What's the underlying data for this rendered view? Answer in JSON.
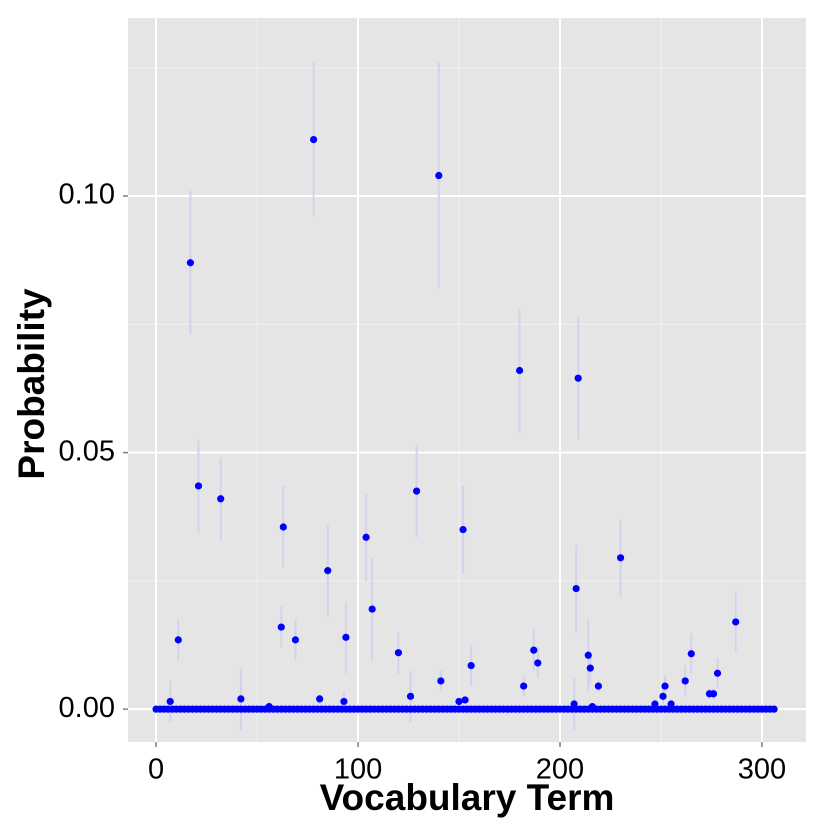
{
  "chart_data": {
    "type": "scatter",
    "x_label": "Vocabulary Term",
    "y_label": "Probability",
    "xlim": [
      -13.9,
      321.8
    ],
    "ylim": [
      -0.0064,
      0.1347
    ],
    "xticks": [
      0,
      100,
      200,
      300
    ],
    "yticks": [
      {
        "value": 0,
        "label": "0.00"
      },
      {
        "value": 0.05,
        "label": "0.05"
      },
      {
        "value": 0.1,
        "label": "0.10"
      }
    ],
    "xminor": [
      50,
      150,
      250
    ],
    "yminor": [
      0.025,
      0.075,
      0.125
    ],
    "grid": true,
    "background": "#e5e5e5",
    "error_color": "#d2d2ee",
    "series": [
      {
        "color": "#0000ff",
        "x": [
          0,
          2,
          4,
          6,
          8,
          10,
          12,
          14,
          16,
          18,
          20,
          22,
          24,
          26,
          28,
          30,
          32,
          34,
          36,
          38,
          40,
          42,
          44,
          46,
          48,
          50,
          52,
          54,
          56,
          58,
          60,
          62,
          64,
          66,
          68,
          70,
          72,
          74,
          76,
          78,
          80,
          82,
          84,
          86,
          88,
          90,
          92,
          94,
          96,
          98,
          100,
          102,
          104,
          106,
          108,
          110,
          112,
          114,
          116,
          118,
          120,
          122,
          124,
          126,
          128,
          130,
          132,
          134,
          136,
          138,
          140,
          142,
          144,
          146,
          148,
          150,
          152,
          154,
          156,
          158,
          160,
          162,
          164,
          166,
          168,
          170,
          172,
          174,
          176,
          178,
          180,
          182,
          184,
          186,
          188,
          190,
          192,
          194,
          196,
          198,
          200,
          202,
          204,
          206,
          208,
          210,
          212,
          214,
          216,
          218,
          220,
          222,
          224,
          226,
          228,
          230,
          232,
          234,
          236,
          238,
          240,
          242,
          244,
          246,
          248,
          250,
          252,
          254,
          256,
          258,
          260,
          262,
          264,
          266,
          268,
          270,
          272,
          274,
          276,
          278,
          280,
          282,
          284,
          286,
          288,
          290,
          292,
          294,
          296,
          298,
          300,
          302,
          304,
          306
        ],
        "values": [
          0,
          0,
          0,
          0,
          0,
          0,
          0,
          0,
          0,
          0,
          0,
          0,
          0,
          0,
          0,
          0,
          0,
          0,
          0,
          0,
          0,
          0,
          0,
          0,
          0,
          0,
          0,
          0,
          0,
          0,
          0,
          0,
          0,
          0,
          0,
          0,
          0,
          0,
          0,
          0,
          0,
          0,
          0,
          0,
          0,
          0,
          0,
          0,
          0,
          0,
          0,
          0,
          0,
          0,
          0,
          0,
          0,
          0,
          0,
          0,
          0,
          0,
          0,
          0,
          0,
          0,
          0,
          0,
          0,
          0,
          0,
          0,
          0,
          0,
          0,
          0,
          0,
          0,
          0,
          0,
          0,
          0,
          0,
          0,
          0,
          0,
          0,
          0,
          0,
          0,
          0,
          0,
          0,
          0,
          0,
          0,
          0,
          0,
          0,
          0,
          0,
          0,
          0,
          0,
          0,
          0,
          0,
          0,
          0,
          0,
          0,
          0,
          0,
          0,
          0,
          0,
          0,
          0,
          0,
          0,
          0,
          0,
          0,
          0,
          0,
          0,
          0,
          0,
          0,
          0,
          0,
          0,
          0,
          0,
          0,
          0,
          0,
          0,
          0,
          0,
          0,
          0,
          0,
          0,
          0,
          0,
          0,
          0,
          0,
          0,
          0,
          0,
          0,
          0
        ]
      },
      {
        "color": "#0000ff",
        "x": [
          7,
          11,
          17,
          21,
          32,
          42,
          56,
          62,
          63,
          69,
          78,
          81,
          85,
          93,
          94,
          104,
          107,
          120,
          126,
          129,
          140,
          141,
          150,
          152,
          153,
          156,
          180,
          182,
          187,
          189,
          207,
          208,
          209,
          214,
          215,
          216,
          219,
          230,
          247,
          251,
          252,
          255,
          262,
          265,
          274,
          276,
          278,
          287
        ],
        "values": [
          0.0015,
          0.0135,
          0.087,
          0.0435,
          0.041,
          0.002,
          0.0005,
          0.016,
          0.0355,
          0.0135,
          0.111,
          0.002,
          0.027,
          0.0015,
          0.014,
          0.0335,
          0.0195,
          0.011,
          0.0025,
          0.0425,
          0.104,
          0.0055,
          0.0015,
          0.035,
          0.0018,
          0.0085,
          0.066,
          0.0045,
          0.0115,
          0.009,
          0.001,
          0.0235,
          0.0645,
          0.0105,
          0.008,
          0.0005,
          0.0045,
          0.0295,
          0.001,
          0.0025,
          0.0045,
          0.001,
          0.0055,
          0.0108,
          0.003,
          0.003,
          0.007,
          0.017
        ],
        "errors": [
          0.004,
          0.004,
          0.014,
          0.009,
          0.008,
          0.006,
          0.001,
          0.004,
          0.008,
          0.004,
          0.015,
          0.001,
          0.009,
          0.002,
          0.007,
          0.0085,
          0.01,
          0.004,
          0.005,
          0.009,
          0.022,
          0.002,
          0,
          0.0085,
          0,
          0.004,
          0.012,
          0.002,
          0.004,
          0.003,
          0.005,
          0.0085,
          0.012,
          0.007,
          0.003,
          0,
          0.001,
          0.0075,
          0,
          0.002,
          0.002,
          0,
          0.003,
          0.004,
          0.001,
          0.001,
          0.003,
          0.006
        ]
      }
    ]
  }
}
